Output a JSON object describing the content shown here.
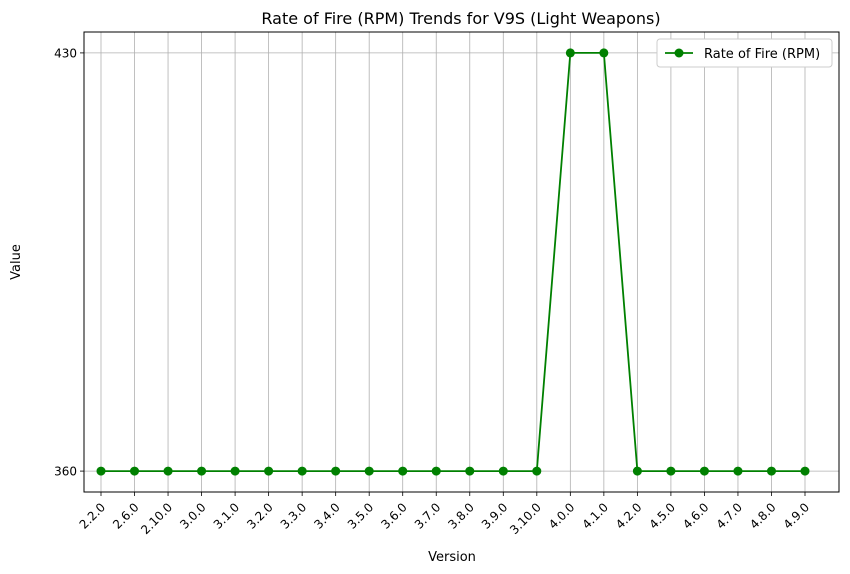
{
  "chart_data": {
    "type": "line",
    "title": "Rate of Fire (RPM) Trends for V9S (Light Weapons)",
    "xlabel": "Version",
    "ylabel": "Value",
    "categories": [
      "2.2.0",
      "2.6.0",
      "2.10.0",
      "3.0.0",
      "3.1.0",
      "3.2.0",
      "3.3.0",
      "3.4.0",
      "3.5.0",
      "3.6.0",
      "3.7.0",
      "3.8.0",
      "3.9.0",
      "3.10.0",
      "4.0.0",
      "4.1.0",
      "4.2.0",
      "4.5.0",
      "4.6.0",
      "4.7.0",
      "4.8.0",
      "4.9.0"
    ],
    "series": [
      {
        "name": "Rate of Fire (RPM)",
        "color": "#008000",
        "marker": "circle",
        "values": [
          360,
          360,
          360,
          360,
          360,
          360,
          360,
          360,
          360,
          360,
          360,
          360,
          360,
          360,
          430,
          430,
          360,
          360,
          360,
          360,
          360,
          360
        ]
      }
    ],
    "yticks": [
      360,
      430
    ],
    "ylim": [
      356.5,
      433.5
    ],
    "grid": true,
    "legend_position": "top-right"
  }
}
